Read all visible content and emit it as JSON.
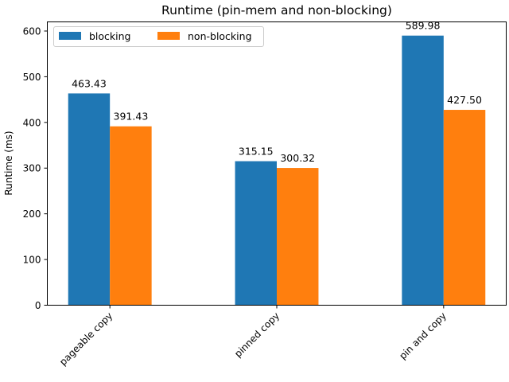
{
  "chart_data": {
    "type": "bar",
    "title": "Runtime (pin-mem and non-blocking)",
    "xlabel": "",
    "ylabel": "Runtime (ms)",
    "categories": [
      "pageable copy",
      "pinned copy",
      "pin and copy"
    ],
    "series": [
      {
        "name": "blocking",
        "values": [
          463.43,
          315.15,
          589.98
        ],
        "labels": [
          "463.43",
          "315.15",
          "589.98"
        ],
        "color": "#1f77b4"
      },
      {
        "name": "non-blocking",
        "values": [
          391.43,
          300.32,
          427.5
        ],
        "labels": [
          "391.43",
          "300.32",
          "427.50"
        ],
        "color": "#ff7f0e"
      }
    ],
    "ylim": [
      0,
      620
    ],
    "yticks": [
      0,
      100,
      200,
      300,
      400,
      500,
      600
    ],
    "grid": false,
    "legend": {
      "position": "top-left",
      "columns": 2
    }
  }
}
